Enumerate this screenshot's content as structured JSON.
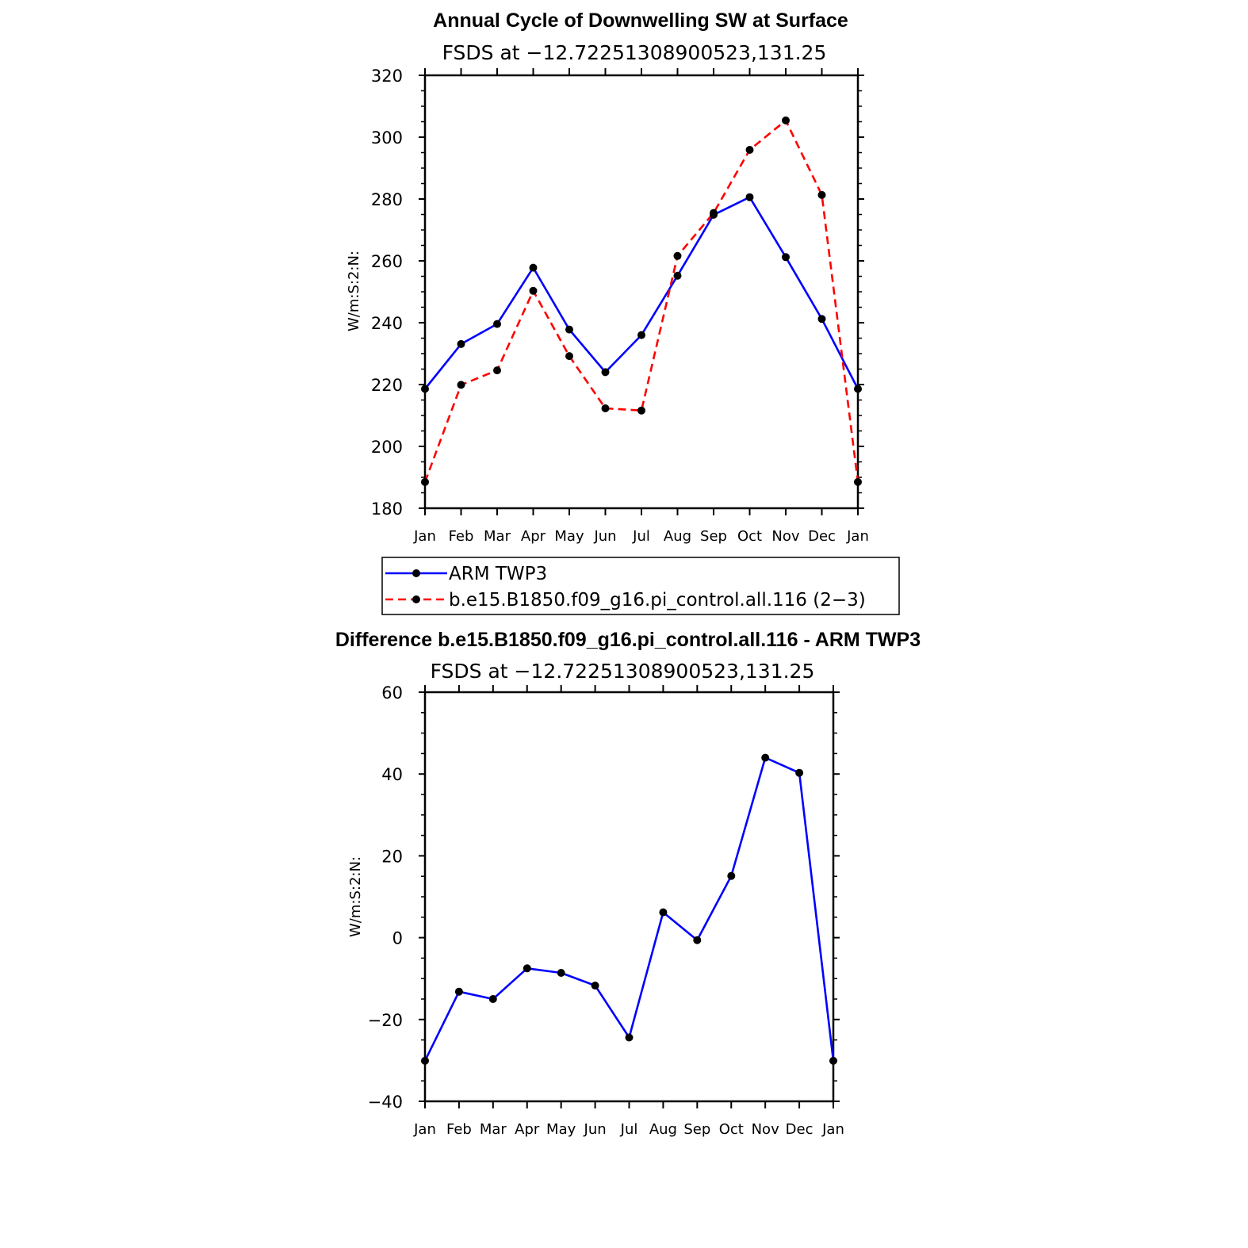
{
  "chart_data": [
    {
      "type": "line",
      "title": "Annual Cycle of Downwelling SW at Surface",
      "subtitle": "FSDS at −12.72251308900523,131.25",
      "ylabel": "W/m:S:2:N:",
      "ylim": [
        180,
        320
      ],
      "yticks": [
        "180",
        "200",
        "220",
        "240",
        "260",
        "280",
        "300",
        "320"
      ],
      "categories": [
        "Jan",
        "Feb",
        "Mar",
        "Apr",
        "May",
        "Jun",
        "Jul",
        "Aug",
        "Sep",
        "Oct",
        "Nov",
        "Dec",
        "Jan"
      ],
      "series": [
        {
          "name": "ARM TWP3",
          "color": "#0000ff",
          "dash": "solid",
          "values": [
            218.6,
            233.1,
            239.6,
            257.8,
            237.8,
            224.0,
            236.0,
            255.2,
            274.9,
            280.6,
            261.2,
            241.2,
            218.6
          ]
        },
        {
          "name": "b.e15.B1850.f09_g16.pi_control.all.116 (2−3)",
          "color": "#ff0000",
          "dash": "dashed",
          "values": [
            188.5,
            219.9,
            224.6,
            250.3,
            229.2,
            212.3,
            211.6,
            261.6,
            275.5,
            295.9,
            305.4,
            281.3,
            188.5
          ]
        }
      ],
      "legend": "below"
    },
    {
      "type": "line",
      "title": "Difference b.e15.B1850.f09_g16.pi_control.all.116 - ARM TWP3",
      "subtitle": "FSDS at −12.72251308900523,131.25",
      "ylabel": "W/m:S:2:N:",
      "ylim": [
        -40,
        60
      ],
      "yticks": [
        "−40",
        "−20",
        "0",
        "20",
        "40",
        "60"
      ],
      "categories": [
        "Jan",
        "Feb",
        "Mar",
        "Apr",
        "May",
        "Jun",
        "Jul",
        "Aug",
        "Sep",
        "Oct",
        "Nov",
        "Dec",
        "Jan"
      ],
      "series": [
        {
          "color": "#0000ff",
          "dash": "solid",
          "values": [
            -30.1,
            -13.2,
            -15.0,
            -7.5,
            -8.6,
            -11.7,
            -24.4,
            6.2,
            -0.6,
            15.1,
            44.0,
            40.3,
            -30.1
          ]
        }
      ]
    }
  ]
}
